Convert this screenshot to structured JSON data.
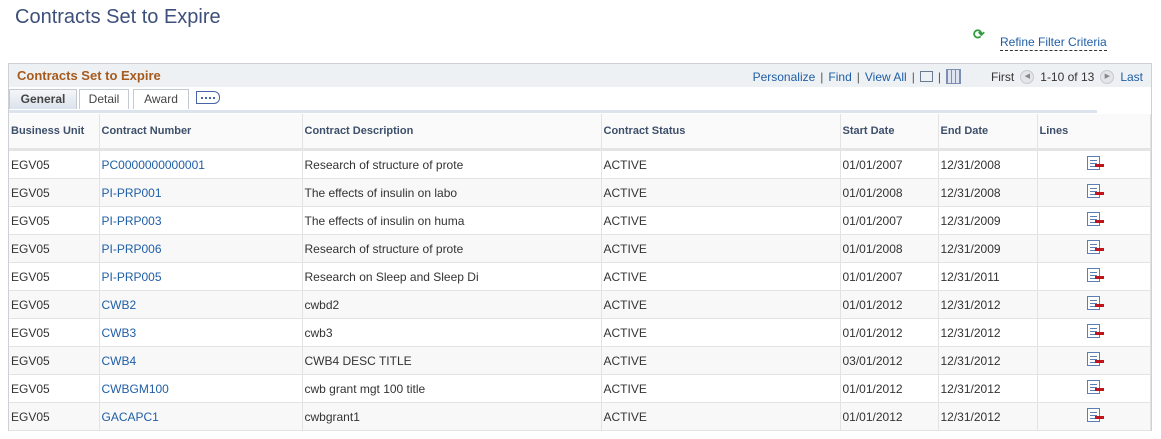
{
  "page_title": "Contracts Set to Expire",
  "refine_filter": "Refine Filter Criteria",
  "grid": {
    "title": "Contracts Set to Expire",
    "nav": {
      "personalize": "Personalize",
      "find": "Find",
      "view_all": "View All",
      "first": "First",
      "range": "1-10 of 13",
      "last": "Last"
    },
    "tabs": [
      "General",
      "Detail",
      "Award"
    ],
    "active_tab": "General",
    "columns": [
      "Business Unit",
      "Contract Number",
      "Contract Description",
      "Contract Status",
      "Start Date",
      "End Date",
      "Lines"
    ],
    "rows": [
      [
        "EGV05",
        "PC0000000000001",
        "Research of structure of prote",
        "ACTIVE",
        "01/01/2007",
        "12/31/2008"
      ],
      [
        "EGV05",
        "PI-PRP001",
        "The effects of insulin on labo",
        "ACTIVE",
        "01/01/2008",
        "12/31/2008"
      ],
      [
        "EGV05",
        "PI-PRP003",
        "The effects of insulin on huma",
        "ACTIVE",
        "01/01/2007",
        "12/31/2009"
      ],
      [
        "EGV05",
        "PI-PRP006",
        "Research of structure of prote",
        "ACTIVE",
        "01/01/2008",
        "12/31/2009"
      ],
      [
        "EGV05",
        "PI-PRP005",
        "Research on Sleep and Sleep Di",
        "ACTIVE",
        "01/01/2007",
        "12/31/2011"
      ],
      [
        "EGV05",
        "CWB2",
        "cwbd2",
        "ACTIVE",
        "01/01/2012",
        "12/31/2012"
      ],
      [
        "EGV05",
        "CWB3",
        "cwb3",
        "ACTIVE",
        "01/01/2012",
        "12/31/2012"
      ],
      [
        "EGV05",
        "CWB4",
        "CWB4 DESC TITLE",
        "ACTIVE",
        "03/01/2012",
        "12/31/2012"
      ],
      [
        "EGV05",
        "CWBGM100",
        "cwb grant mgt 100 title",
        "ACTIVE",
        "01/01/2012",
        "12/31/2012"
      ],
      [
        "EGV05",
        "GACAPC1",
        "cwbgrant1",
        "ACTIVE",
        "01/01/2012",
        "12/31/2012"
      ]
    ]
  }
}
